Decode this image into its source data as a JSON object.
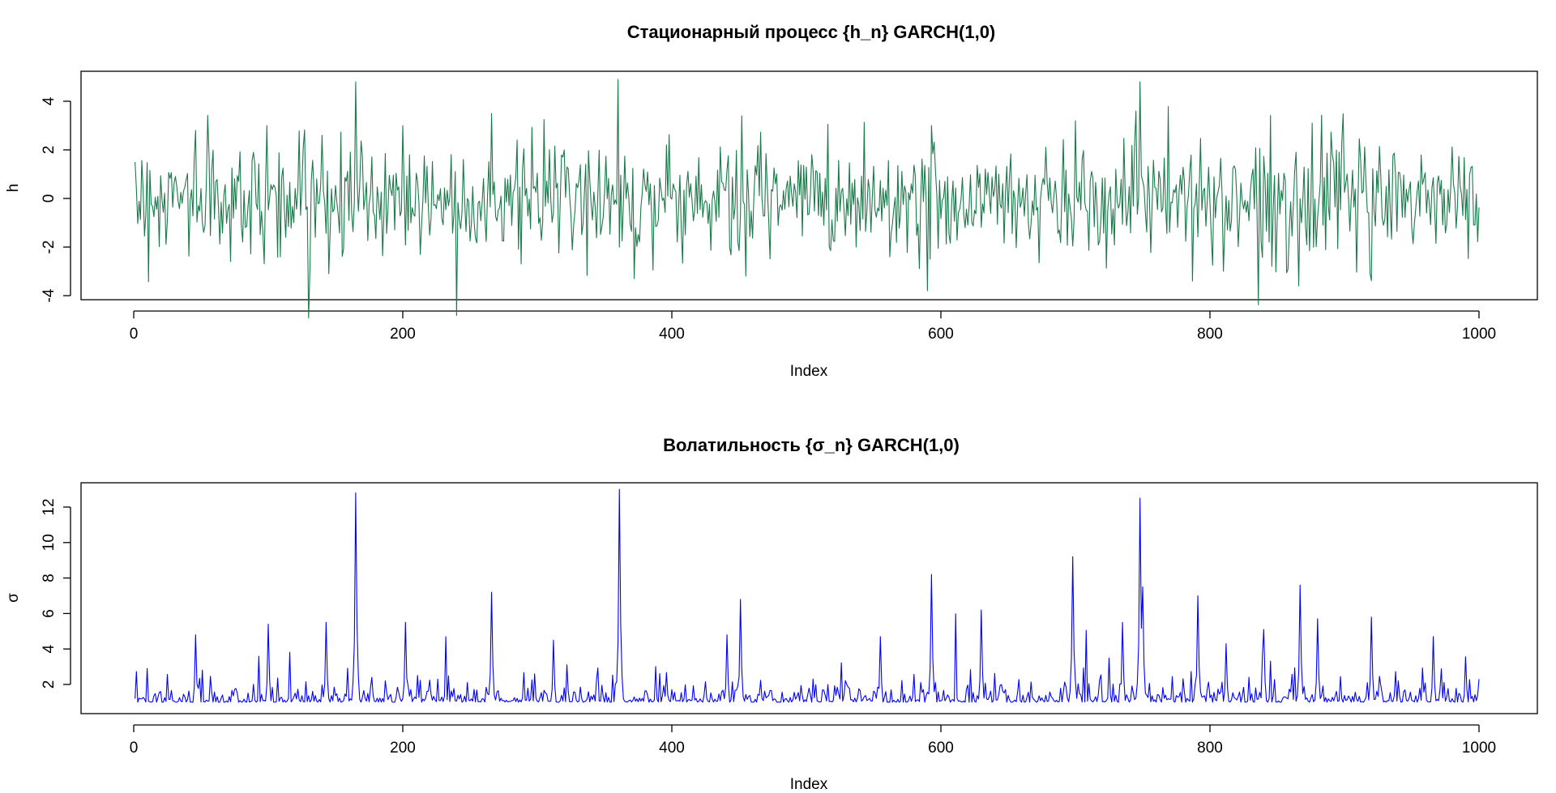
{
  "chart_data": [
    {
      "type": "line",
      "title": "Стационарный процесс {h_n} GARCH(1,0)",
      "xlabel": "Index",
      "ylabel": "h",
      "xlim": [
        0,
        1000
      ],
      "ylim": [
        -4,
        5
      ],
      "xticks": [
        "0",
        "200",
        "400",
        "600",
        "800",
        "1000"
      ],
      "yticks": [
        "-4",
        "-2",
        "0",
        "2",
        "4"
      ],
      "grid": false,
      "series": [
        {
          "color": "#1b7a4a",
          "n": 1000,
          "peaks": [
            {
              "x": 165,
              "y": 4.8
            },
            {
              "x": 360,
              "y": 4.9
            },
            {
              "x": 748,
              "y": 4.8
            },
            {
              "x": 266,
              "y": 3.5
            },
            {
              "x": 452,
              "y": 3.4
            },
            {
              "x": 745,
              "y": 3.6
            },
            {
              "x": 99,
              "y": 3.0
            },
            {
              "x": 593,
              "y": 3.0
            },
            {
              "x": 700,
              "y": 3.2
            },
            {
              "x": 876,
              "y": 3.1
            },
            {
              "x": 46,
              "y": 2.8
            },
            {
              "x": 140,
              "y": 2.6
            },
            {
              "x": 200,
              "y": 3.0
            },
            {
              "x": 1,
              "y": 1.5
            }
          ],
          "troughs": [
            {
              "x": 145,
              "y": -3.1
            },
            {
              "x": 372,
              "y": -3.3
            },
            {
              "x": 590,
              "y": -3.8
            },
            {
              "x": 787,
              "y": -3.4
            },
            {
              "x": 866,
              "y": -3.6
            },
            {
              "x": 810,
              "y": -3.0
            },
            {
              "x": 455,
              "y": -3.2
            },
            {
              "x": 919,
              "y": -3.1
            },
            {
              "x": 72,
              "y": -2.6
            }
          ]
        }
      ]
    },
    {
      "type": "line",
      "title": "Волатильность {σ_n} GARCH(1,0)",
      "xlabel": "Index",
      "ylabel": "σ",
      "xlim": [
        0,
        1000
      ],
      "ylim": [
        0.8,
        13
      ],
      "xticks": [
        "0",
        "200",
        "400",
        "600",
        "800",
        "1000"
      ],
      "yticks": [
        "2",
        "4",
        "6",
        "8",
        "10",
        "12"
      ],
      "grid": false,
      "series": [
        {
          "color": "#0000ff",
          "n": 1000,
          "peaks": [
            {
              "x": 165,
              "y": 12.8
            },
            {
              "x": 361,
              "y": 13.0
            },
            {
              "x": 748,
              "y": 12.5
            },
            {
              "x": 698,
              "y": 9.2
            },
            {
              "x": 593,
              "y": 8.2
            },
            {
              "x": 867,
              "y": 7.6
            },
            {
              "x": 266,
              "y": 7.2
            },
            {
              "x": 451,
              "y": 6.8
            },
            {
              "x": 791,
              "y": 7.0
            },
            {
              "x": 750,
              "y": 7.5
            },
            {
              "x": 920,
              "y": 5.8
            },
            {
              "x": 880,
              "y": 5.7
            },
            {
              "x": 100,
              "y": 5.4
            },
            {
              "x": 202,
              "y": 5.5
            },
            {
              "x": 143,
              "y": 5.5
            },
            {
              "x": 630,
              "y": 6.2
            },
            {
              "x": 46,
              "y": 4.8
            },
            {
              "x": 312,
              "y": 4.5
            },
            {
              "x": 441,
              "y": 4.8
            },
            {
              "x": 555,
              "y": 4.7
            },
            {
              "x": 966,
              "y": 4.7
            },
            {
              "x": 812,
              "y": 4.3
            },
            {
              "x": 840,
              "y": 5.1
            },
            {
              "x": 735,
              "y": 5.5
            },
            {
              "x": 1000,
              "y": 2.3
            }
          ],
          "baseline": 1.0
        }
      ]
    }
  ]
}
